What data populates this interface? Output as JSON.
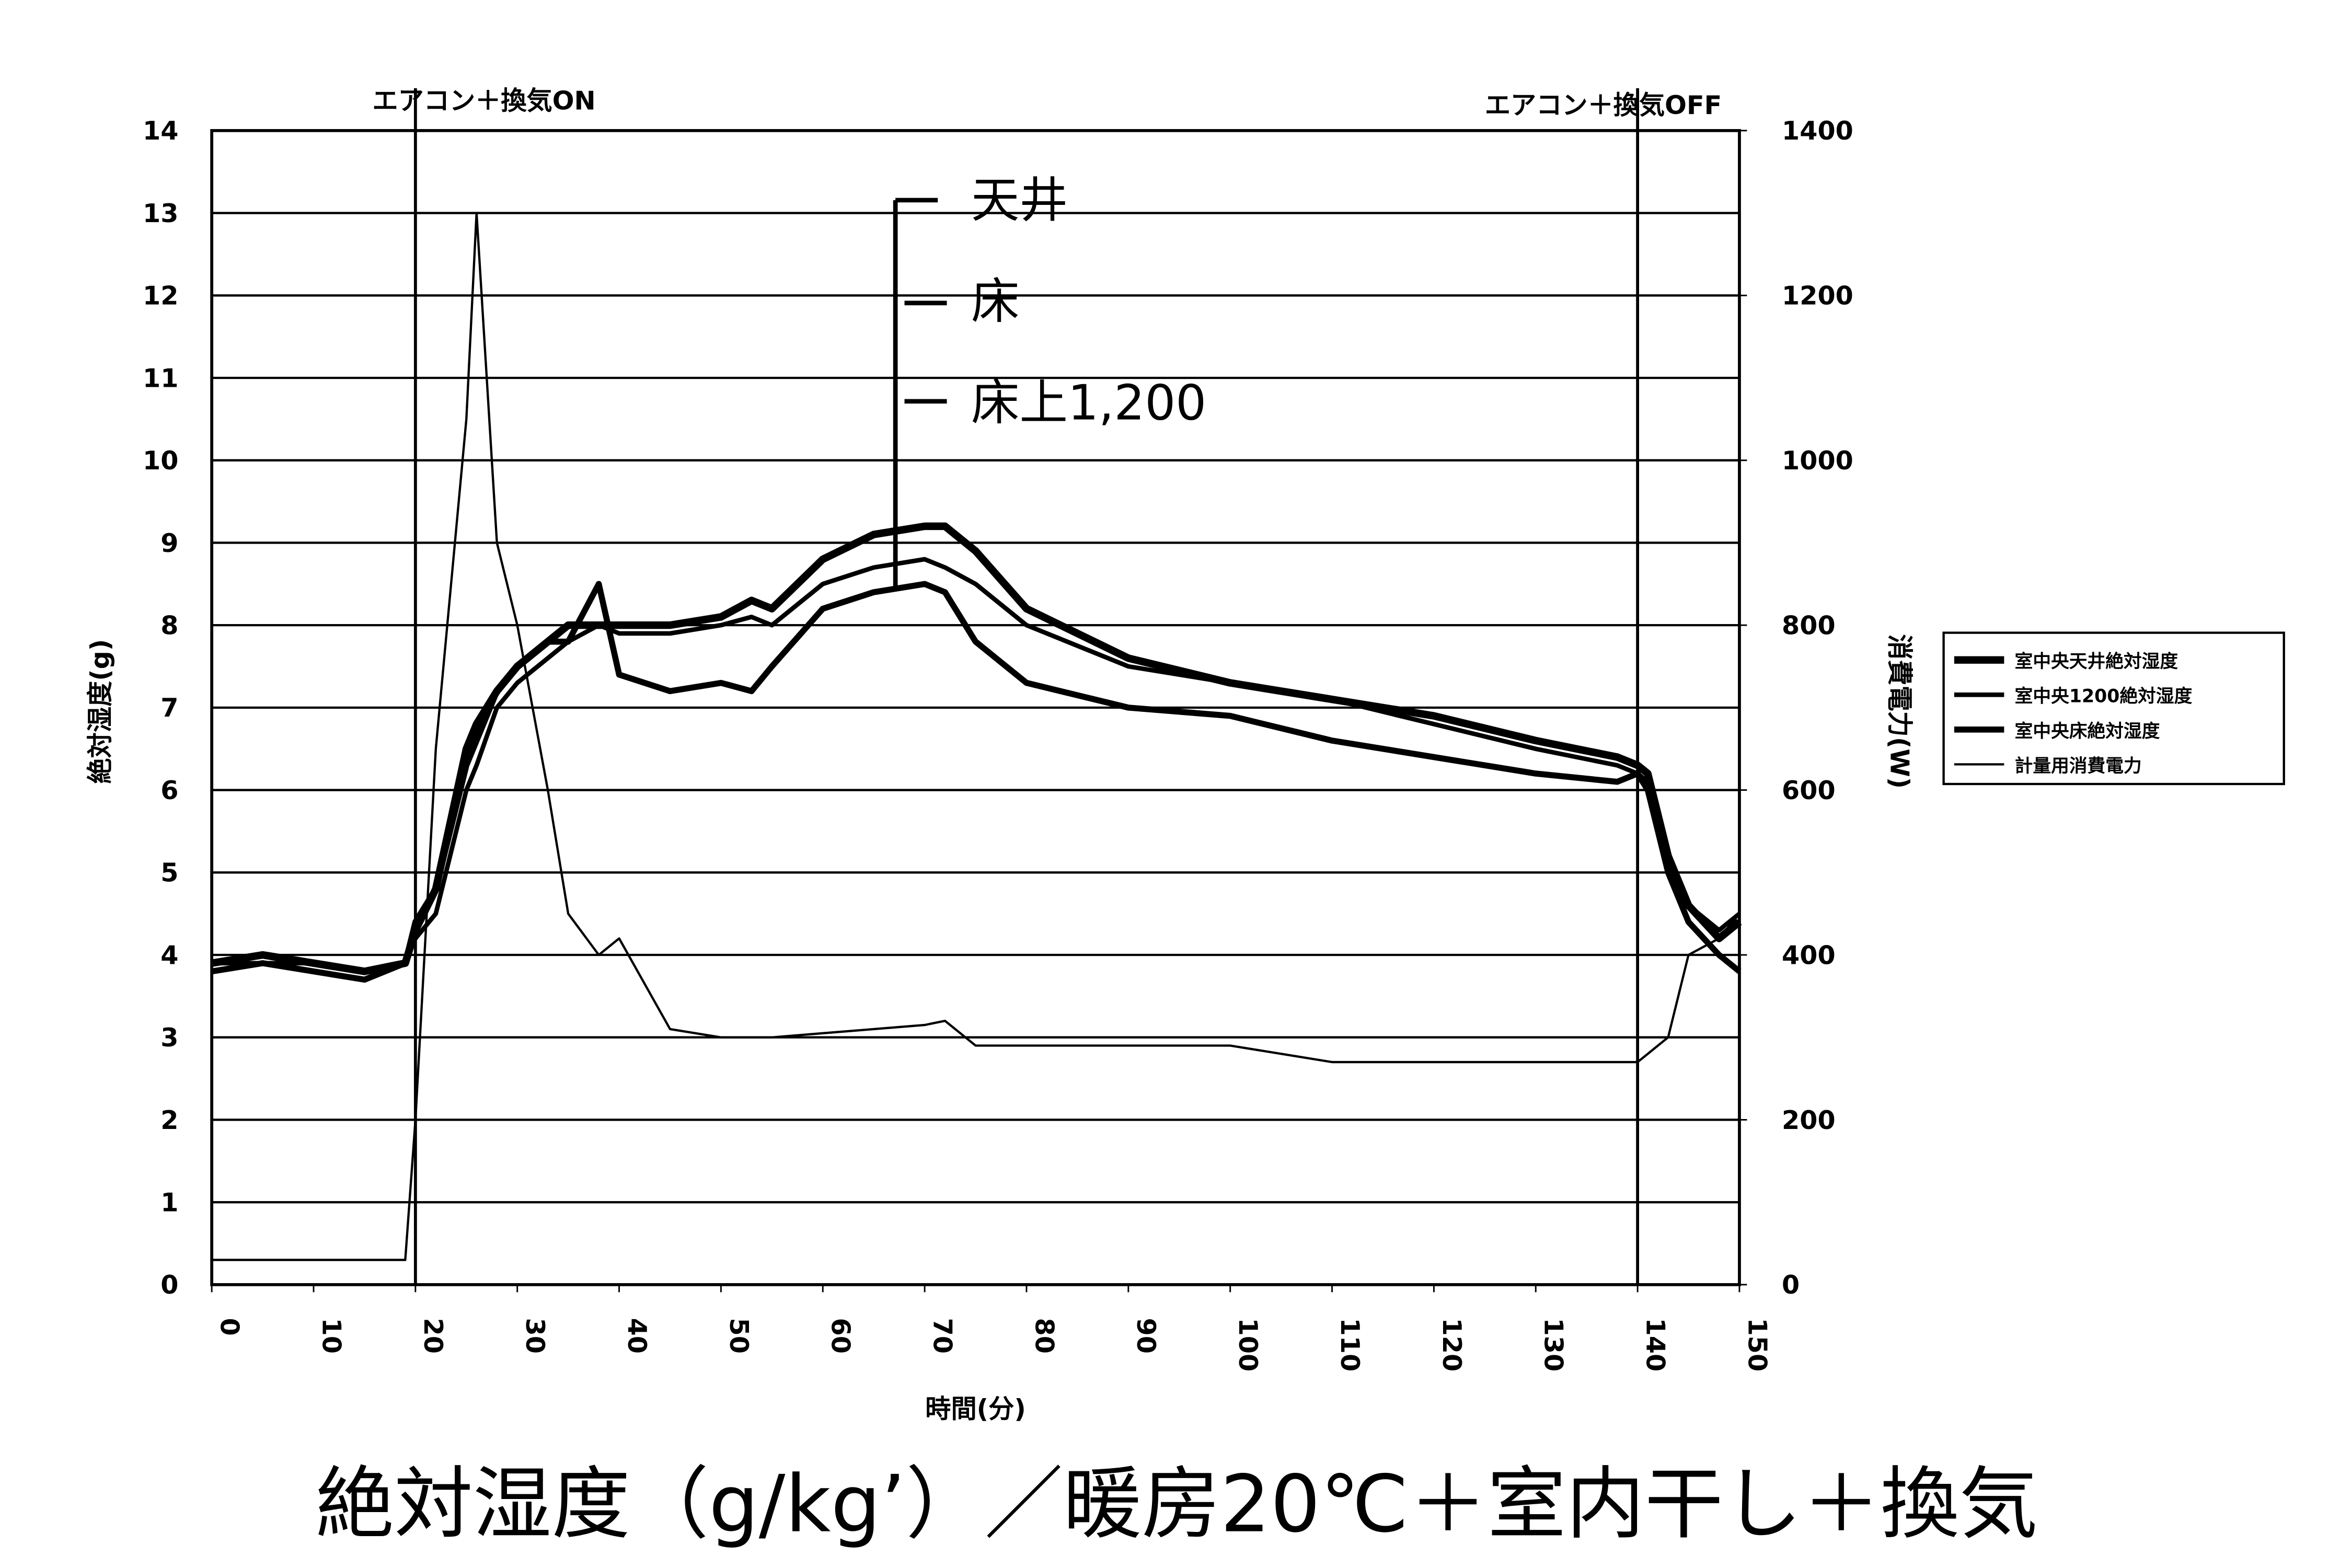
{
  "chart_data": {
    "type": "line",
    "caption": "絶対湿度（g/kg’）／暖房20℃＋室内干し＋換気",
    "annotations": [
      "エアコン＋換気ON",
      "エアコン＋換気OFF",
      "天井",
      "床",
      "床上1,200"
    ],
    "xlabel": "時間(分)",
    "ylabel": "絶対湿度(g)",
    "y2label": "消費電力(W)",
    "x": [
      0,
      5,
      10,
      15,
      19,
      20,
      22,
      25,
      26,
      28,
      30,
      33,
      35,
      38,
      40,
      45,
      50,
      53,
      55,
      60,
      65,
      70,
      72,
      75,
      80,
      90,
      100,
      110,
      120,
      130,
      138,
      140,
      141,
      143,
      145,
      148,
      150
    ],
    "series": [
      {
        "name": "室中央天井絶対湿度",
        "color": "#000",
        "width": 5,
        "values": [
          3.9,
          4.0,
          3.9,
          3.8,
          3.9,
          4.3,
          4.8,
          6.5,
          6.8,
          7.2,
          7.5,
          7.8,
          8.0,
          8.0,
          8.0,
          8.0,
          8.1,
          8.3,
          8.2,
          8.8,
          9.1,
          9.2,
          9.2,
          8.9,
          8.2,
          7.6,
          7.3,
          7.1,
          6.9,
          6.6,
          6.4,
          6.3,
          6.2,
          5.2,
          4.6,
          4.2,
          4.4
        ]
      },
      {
        "name": "室中央1200絶対湿度",
        "color": "#000",
        "width": 3,
        "values": [
          3.9,
          3.9,
          3.9,
          3.8,
          3.9,
          4.2,
          4.5,
          6.0,
          6.3,
          7.0,
          7.3,
          7.6,
          7.8,
          8.0,
          7.9,
          7.9,
          8.0,
          8.1,
          8.0,
          8.5,
          8.7,
          8.8,
          8.7,
          8.5,
          8.0,
          7.5,
          7.3,
          7.1,
          6.8,
          6.5,
          6.3,
          6.2,
          6.1,
          5.0,
          4.6,
          4.3,
          4.5
        ]
      },
      {
        "name": "室中央床絶対湿度",
        "color": "#000",
        "width": 4,
        "values": [
          3.8,
          3.9,
          3.8,
          3.7,
          3.9,
          4.4,
          4.8,
          6.3,
          6.6,
          7.2,
          7.5,
          7.8,
          7.8,
          8.5,
          7.4,
          7.2,
          7.3,
          7.2,
          7.5,
          8.2,
          8.4,
          8.5,
          8.4,
          7.8,
          7.3,
          7.0,
          6.9,
          6.6,
          6.4,
          6.2,
          6.1,
          6.2,
          6.0,
          5.0,
          4.4,
          4.0,
          3.8
        ]
      },
      {
        "name": "計量用消費電力",
        "color": "#000",
        "width": 1.5,
        "axis": "y2",
        "values": [
          30,
          30,
          30,
          30,
          30,
          200,
          650,
          1050,
          1300,
          900,
          800,
          600,
          450,
          400,
          420,
          310,
          300,
          300,
          300,
          305,
          310,
          315,
          320,
          290,
          290,
          290,
          290,
          270,
          270,
          270,
          270,
          270,
          280,
          300,
          400,
          420,
          450
        ]
      }
    ],
    "xlim": [
      0,
      150
    ],
    "xticks": [
      0,
      10,
      20,
      30,
      40,
      50,
      60,
      70,
      80,
      90,
      100,
      110,
      120,
      130,
      140,
      150
    ],
    "ylim": [
      0,
      14
    ],
    "yticks": [
      0,
      1,
      2,
      3,
      4,
      5,
      6,
      7,
      8,
      9,
      10,
      11,
      12,
      13,
      14
    ],
    "y2lim": [
      0,
      1400
    ],
    "y2ticks": [
      0,
      200,
      400,
      600,
      800,
      1000,
      1200,
      1400
    ],
    "grid": true
  }
}
